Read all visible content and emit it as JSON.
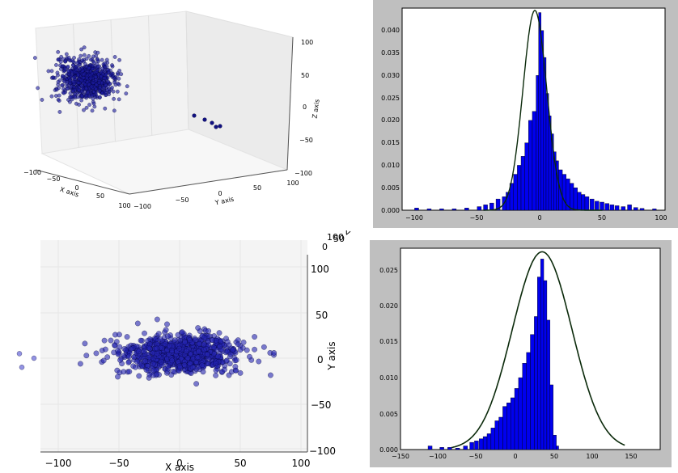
{
  "charts": {
    "scatter3d_top": {
      "xlabel": "X axis",
      "ylabel": "Y axis",
      "zlabel": "Z axis",
      "x_ticks": [
        "−100",
        "−50",
        "0",
        "50",
        "100"
      ],
      "y_ticks": [
        "−100",
        "−50",
        "0",
        "50",
        "100"
      ],
      "z_ticks": [
        "100",
        "50",
        "0",
        "−50",
        "−100"
      ]
    },
    "hist_top": {
      "x_ticks": [
        "−100",
        "−50",
        "0",
        "50",
        "100"
      ],
      "y_ticks": [
        "0.000",
        "0.005",
        "0.010",
        "0.015",
        "0.020",
        "0.025",
        "0.030",
        "0.035",
        "0.040"
      ]
    },
    "scatter3d_bottom": {
      "xlabel": "X axis",
      "ylabel": "Y axis",
      "zlabel": "Z axis",
      "x_ticks": [
        "−100",
        "−50",
        "0",
        "50",
        "100"
      ],
      "y_ticks": [
        "100",
        "50",
        "0",
        "−50",
        "−100"
      ],
      "corner_ticks": [
        "100",
        "50",
        "0"
      ]
    },
    "hist_bottom": {
      "x_ticks": [
        "−150",
        "−100",
        "−50",
        "0",
        "50",
        "100",
        "150"
      ],
      "y_ticks": [
        "0.000",
        "0.005",
        "0.010",
        "0.015",
        "0.020",
        "0.025"
      ]
    }
  },
  "chart_data": [
    {
      "type": "scatter",
      "view": "3d",
      "xlabel": "X axis",
      "ylabel": "Y axis",
      "zlabel": "Z axis",
      "xlim": [
        -100,
        100
      ],
      "ylim": [
        -100,
        100
      ],
      "zlim": [
        -100,
        100
      ],
      "grid": true,
      "cluster": {
        "x_range": [
          -60,
          40
        ],
        "y_range": [
          -40,
          40
        ],
        "z_range": [
          -50,
          60
        ]
      },
      "outliers": [
        {
          "x": -100,
          "y": 0,
          "z": 0
        }
      ]
    },
    {
      "type": "bar",
      "subtype": "histogram_with_normal_fit",
      "xlim": [
        -110,
        100
      ],
      "ylim": [
        0,
        0.045
      ],
      "bins": [
        [
          -100,
          0.0005
        ],
        [
          -90,
          0.0003
        ],
        [
          -80,
          0.0003
        ],
        [
          -70,
          0.0003
        ],
        [
          -60,
          0.0005
        ],
        [
          -50,
          0.0008
        ],
        [
          -45,
          0.0012
        ],
        [
          -40,
          0.0016
        ],
        [
          -35,
          0.0025
        ],
        [
          -30,
          0.003
        ],
        [
          -27,
          0.004
        ],
        [
          -24,
          0.006
        ],
        [
          -21,
          0.008
        ],
        [
          -18,
          0.01
        ],
        [
          -15,
          0.012
        ],
        [
          -12,
          0.015
        ],
        [
          -9,
          0.02
        ],
        [
          -6,
          0.022
        ],
        [
          -3,
          0.03
        ],
        [
          -1,
          0.044
        ],
        [
          1,
          0.04
        ],
        [
          3,
          0.034
        ],
        [
          5,
          0.026
        ],
        [
          7,
          0.021
        ],
        [
          9,
          0.017
        ],
        [
          11,
          0.013
        ],
        [
          13,
          0.011
        ],
        [
          15,
          0.009
        ],
        [
          18,
          0.008
        ],
        [
          21,
          0.007
        ],
        [
          24,
          0.006
        ],
        [
          27,
          0.005
        ],
        [
          30,
          0.004
        ],
        [
          33,
          0.0035
        ],
        [
          36,
          0.003
        ],
        [
          40,
          0.0025
        ],
        [
          44,
          0.002
        ],
        [
          48,
          0.0018
        ],
        [
          52,
          0.0015
        ],
        [
          56,
          0.0012
        ],
        [
          60,
          0.001
        ],
        [
          65,
          0.0008
        ],
        [
          70,
          0.0012
        ],
        [
          75,
          0.0006
        ],
        [
          80,
          0.0004
        ],
        [
          90,
          0.0003
        ]
      ],
      "fit": {
        "mean": -4,
        "std": 9.5,
        "peak": 0.0445,
        "x_range": [
          -45,
          50
        ]
      },
      "grid": false
    },
    {
      "type": "scatter",
      "view": "3d_top",
      "xlabel": "X axis",
      "ylabel": "Y axis",
      "zlabel": "Z axis",
      "xlim": [
        -100,
        100
      ],
      "ylim": [
        -100,
        100
      ],
      "cluster": {
        "x_range": [
          -80,
          40
        ],
        "y_range": [
          -30,
          40
        ]
      },
      "outliers": [
        {
          "x": -112,
          "y": 5
        },
        {
          "x": -100,
          "y": 0
        },
        {
          "x": -110,
          "y": -10
        }
      ]
    },
    {
      "type": "bar",
      "subtype": "histogram_with_normal_fit",
      "xlim": [
        -160,
        170
      ],
      "ylim": [
        0,
        0.028
      ],
      "bins": [
        [
          -125,
          0.0005
        ],
        [
          -110,
          0.0003
        ],
        [
          -100,
          0.0003
        ],
        [
          -90,
          0.0002
        ],
        [
          -80,
          0.0005
        ],
        [
          -72,
          0.001
        ],
        [
          -66,
          0.0012
        ],
        [
          -60,
          0.0015
        ],
        [
          -55,
          0.0018
        ],
        [
          -50,
          0.0022
        ],
        [
          -45,
          0.003
        ],
        [
          -40,
          0.004
        ],
        [
          -35,
          0.0045
        ],
        [
          -30,
          0.006
        ],
        [
          -25,
          0.0065
        ],
        [
          -20,
          0.0072
        ],
        [
          -15,
          0.0085
        ],
        [
          -10,
          0.01
        ],
        [
          -5,
          0.012
        ],
        [
          0,
          0.0135
        ],
        [
          5,
          0.016
        ],
        [
          10,
          0.0185
        ],
        [
          14,
          0.024
        ],
        [
          18,
          0.0265
        ],
        [
          22,
          0.0235
        ],
        [
          26,
          0.018
        ],
        [
          30,
          0.009
        ],
        [
          34,
          0.002
        ],
        [
          38,
          0.0005
        ]
      ],
      "fit": {
        "mean": 20,
        "std": 38,
        "peak": 0.0275,
        "x_range": [
          -95,
          125
        ]
      },
      "grid": false
    }
  ]
}
